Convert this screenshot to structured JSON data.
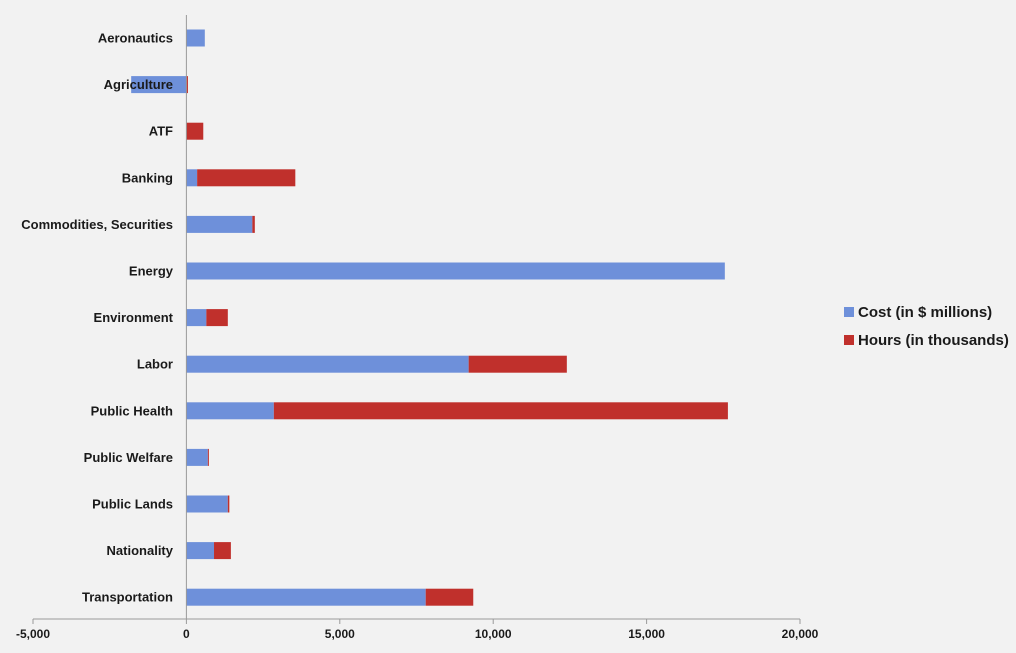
{
  "chart_data": {
    "type": "bar",
    "orientation": "horizontal",
    "stacked": true,
    "categories": [
      "Aeronautics",
      "Agriculture",
      "ATF",
      "Banking",
      "Commodities, Securities",
      "Energy",
      "Environment",
      "Labor",
      "Public Health",
      "Public Welfare",
      "Public Lands",
      "Nationality",
      "Transportation"
    ],
    "series": [
      {
        "name": "Cost (in $ millions)",
        "color": "#6e90da",
        "values": [
          600,
          -1800,
          0,
          350,
          2150,
          17550,
          650,
          9200,
          2850,
          700,
          1350,
          900,
          7800
        ]
      },
      {
        "name": "Hours (in thousands)",
        "color": "#c0302c",
        "values": [
          0,
          50,
          550,
          3200,
          80,
          0,
          700,
          3200,
          14800,
          30,
          50,
          550,
          1550
        ]
      }
    ],
    "xlim": [
      -5000,
      20000
    ],
    "x_ticks": [
      "-5,000",
      "0",
      "5,000",
      "10,000",
      "15,000",
      "20,000"
    ],
    "grid": false,
    "legend": "right"
  }
}
